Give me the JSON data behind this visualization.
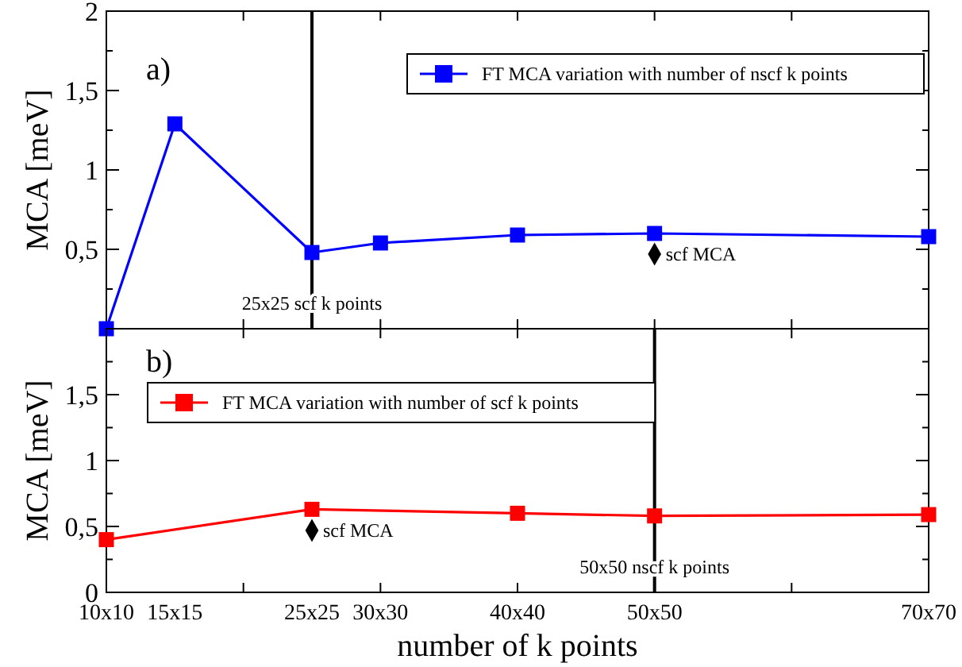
{
  "chart_data": [
    {
      "type": "line",
      "ylabel": "MCA [meV]",
      "annotations": [
        "a)"
      ],
      "categories": [
        "10x10",
        "15x15",
        null,
        "25x25",
        "30x30",
        null,
        "40x40",
        null,
        "50x50",
        null,
        null,
        null,
        "70x70"
      ],
      "ylim": [
        0,
        2
      ],
      "yticks": [
        {
          "value": 0,
          "label": null
        },
        {
          "value": 0.25,
          "label": null
        },
        {
          "value": 0.5,
          "label": "0,5"
        },
        {
          "value": 0.75,
          "label": null
        },
        {
          "value": 1,
          "label": "1"
        },
        {
          "value": 1.25,
          "label": null
        },
        {
          "value": 1.5,
          "label": "1,5"
        },
        {
          "value": 1.75,
          "label": null
        },
        {
          "value": 2,
          "label": "2"
        }
      ],
      "tick_labels": "y",
      "legend": "top right",
      "marker": "square",
      "line_style": "solid",
      "ref_lines": [
        {
          "axis": "x",
          "value": "25x25",
          "label": "25x25 scf k points",
          "color": "#000000"
        }
      ],
      "series": [
        {
          "name": "FT MCA variation with number of nscf k points",
          "color": "#0000ff",
          "values": [
            0,
            1.29,
            null,
            0.48,
            0.54,
            null,
            0.59,
            null,
            0.6,
            null,
            null,
            null,
            0.58
          ]
        },
        {
          "type": "scatter",
          "name": "scf MCA",
          "color": "#000000",
          "marker": "diamond",
          "values": [
            null,
            null,
            null,
            null,
            null,
            null,
            null,
            null,
            0.47,
            null,
            null,
            null,
            null
          ]
        }
      ]
    },
    {
      "type": "line",
      "ylabel": "MCA [meV]",
      "xlabel": "number of k points",
      "annotations": [
        "b)"
      ],
      "categories": [
        "10x10",
        "15x15",
        null,
        "25x25",
        "30x30",
        null,
        "40x40",
        null,
        "50x50",
        null,
        null,
        null,
        "70x70"
      ],
      "ylim": [
        0,
        2
      ],
      "yticks": [
        {
          "value": 0,
          "label": "0"
        },
        {
          "value": 0.25,
          "label": null
        },
        {
          "value": 0.5,
          "label": "0,5"
        },
        {
          "value": 0.75,
          "label": null
        },
        {
          "value": 1,
          "label": "1"
        },
        {
          "value": 1.25,
          "label": null
        },
        {
          "value": 1.5,
          "label": "1,5"
        },
        {
          "value": 1.75,
          "label": null
        },
        {
          "value": 2,
          "label": null
        }
      ],
      "legend": "top left",
      "marker": "square",
      "line_style": "solid",
      "ref_lines": [
        {
          "axis": "x",
          "value": "50x50",
          "label": "50x50 nscf k points",
          "color": "#000000"
        }
      ],
      "series": [
        {
          "name": "FT MCA variation with number of scf k points",
          "color": "#ff0000",
          "values": [
            0.4,
            null,
            null,
            0.63,
            null,
            null,
            0.6,
            null,
            0.58,
            null,
            null,
            null,
            0.59
          ]
        },
        {
          "type": "scatter",
          "name": "scf MCA",
          "color": "#000000",
          "marker": "diamond",
          "values": [
            null,
            null,
            null,
            0.47,
            null,
            null,
            null,
            null,
            null,
            null,
            null,
            null,
            null
          ]
        }
      ]
    }
  ]
}
